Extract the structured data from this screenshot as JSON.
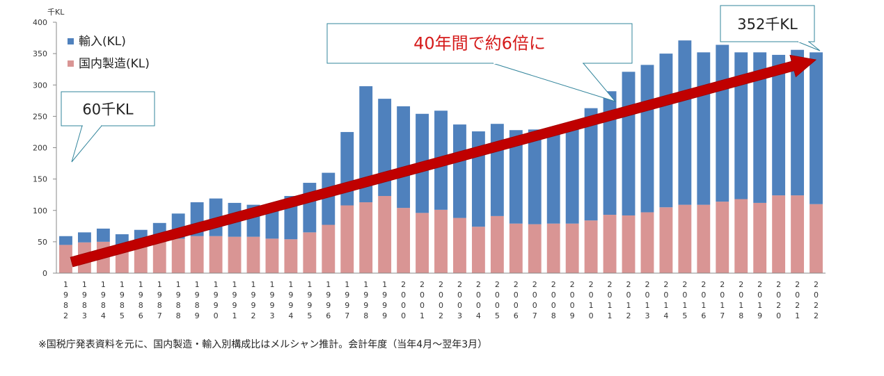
{
  "chart_data": {
    "type": "bar",
    "stacked": true,
    "unit_label": "千KL",
    "ylim": [
      0,
      400
    ],
    "yticks": [
      0,
      50,
      100,
      150,
      200,
      250,
      300,
      350,
      400
    ],
    "categories": [
      "1982",
      "1983",
      "1984",
      "1985",
      "1986",
      "1987",
      "1988",
      "1989",
      "1990",
      "1991",
      "1992",
      "1993",
      "1994",
      "1995",
      "1996",
      "1997",
      "1998",
      "1999",
      "2000",
      "2001",
      "2002",
      "2003",
      "2004",
      "2005",
      "2006",
      "2007",
      "2008",
      "2009",
      "2010",
      "2011",
      "2012",
      "2013",
      "2014",
      "2015",
      "2016",
      "2017",
      "2018",
      "2019",
      "2020",
      "2021",
      "2022"
    ],
    "series": [
      {
        "name": "国内製造(KL)",
        "color": "#d99594",
        "values": [
          45,
          49,
          50,
          45,
          45,
          50,
          55,
          59,
          59,
          58,
          58,
          55,
          54,
          65,
          77,
          108,
          113,
          123,
          104,
          96,
          101,
          88,
          74,
          91,
          79,
          78,
          79,
          79,
          84,
          93,
          92,
          97,
          105,
          109,
          109,
          114,
          118,
          112,
          124,
          124,
          110
        ]
      },
      {
        "name": "輸入(KL)",
        "color": "#4f81bd",
        "values": [
          14,
          16,
          21,
          17,
          24,
          30,
          40,
          54,
          60,
          54,
          51,
          54,
          69,
          79,
          83,
          117,
          185,
          155,
          162,
          158,
          158,
          149,
          152,
          147,
          149,
          151,
          152,
          159,
          179,
          197,
          229,
          235,
          245,
          262,
          243,
          250,
          234,
          240,
          224,
          232,
          242
        ]
      }
    ],
    "legend": [
      "輸入(KL)",
      "国内製造(KL)"
    ],
    "annotations": {
      "start_callout": "60千KL",
      "end_callout": "352千KL",
      "trend_callout": "40年間で約6倍に"
    },
    "footnote": "※国税庁発表資料を元に、国内製造・輸入別構成比はメルシャン推計。会計年度（当年4月～翌年3月）"
  }
}
